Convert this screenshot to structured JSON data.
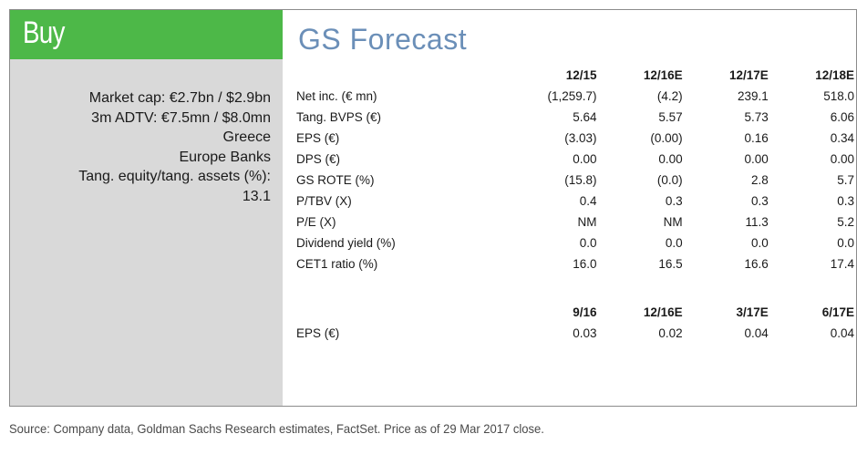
{
  "rating": "Buy",
  "meta": [
    "Market cap: €2.7bn / $2.9bn",
    "3m ADTV: €7.5mn / $8.0mn",
    "Greece",
    "Europe Banks",
    "Tang. equity/tang. assets (%):",
    "13.1"
  ],
  "forecast": {
    "title": "GS Forecast",
    "headers": [
      "12/15",
      "12/16E",
      "12/17E",
      "12/18E"
    ],
    "rows": [
      {
        "label": "Net inc. (€ mn)",
        "values": [
          "(1,259.7)",
          "(4.2)",
          "239.1",
          "518.0"
        ]
      },
      {
        "label": "Tang. BVPS (€)",
        "values": [
          "5.64",
          "5.57",
          "5.73",
          "6.06"
        ]
      },
      {
        "label": "EPS (€)",
        "values": [
          "(3.03)",
          "(0.00)",
          "0.16",
          "0.34"
        ]
      },
      {
        "label": "DPS (€)",
        "values": [
          "0.00",
          "0.00",
          "0.00",
          "0.00"
        ]
      },
      {
        "label": "GS ROTE (%)",
        "values": [
          "(15.8)",
          "(0.0)",
          "2.8",
          "5.7"
        ]
      },
      {
        "label": "P/TBV (X)",
        "values": [
          "0.4",
          "0.3",
          "0.3",
          "0.3"
        ]
      },
      {
        "label": "P/E (X)",
        "values": [
          "NM",
          "NM",
          "11.3",
          "5.2"
        ]
      },
      {
        "label": "Dividend yield (%)",
        "values": [
          "0.0",
          "0.0",
          "0.0",
          "0.0"
        ]
      },
      {
        "label": "CET1 ratio (%)",
        "values": [
          "16.0",
          "16.5",
          "16.6",
          "17.4"
        ]
      }
    ]
  },
  "quarterly": {
    "headers": [
      "9/16",
      "12/16E",
      "3/17E",
      "6/17E"
    ],
    "rows": [
      {
        "label": "EPS (€)",
        "values": [
          "0.03",
          "0.02",
          "0.04",
          "0.04"
        ]
      }
    ]
  },
  "source": "Source: Company data, Goldman Sachs Research estimates, FactSet. Price as of 29 Mar 2017 close.",
  "colors": {
    "rating_bar": "#4db848",
    "title": "#6b8fb8",
    "left_panel": "#d9d9d9"
  }
}
